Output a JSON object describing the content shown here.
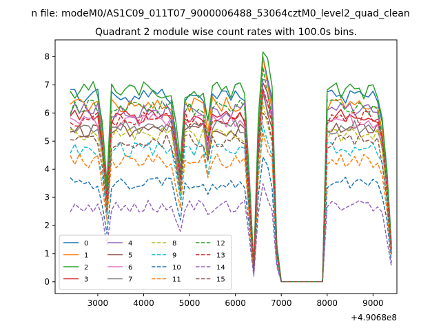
{
  "figure": {
    "suptitle": "n file: modeM0/AS1C09_011T07_9000006488_53064cztM0_level2_quad_clean",
    "title": "Quadrant 2 module wise count rates with 100.0s bins.",
    "offset_label": "+4.9068e8"
  },
  "chart_data": {
    "type": "line",
    "title": "Quadrant 2 module wise count rates with 100.0s bins.",
    "xlabel": "",
    "ylabel": "",
    "x_offset": 490680000,
    "xlim": [
      2070,
      9520
    ],
    "ylim": [
      -0.42,
      8.6
    ],
    "x_ticks": [
      3000,
      4000,
      5000,
      6000,
      7000,
      8000,
      9000
    ],
    "x_tick_labels": [
      "3000",
      "4000",
      "5000",
      "6000",
      "7000",
      "8000",
      "9000"
    ],
    "y_ticks": [
      0,
      1,
      2,
      3,
      4,
      5,
      6,
      7,
      8
    ],
    "y_tick_labels": [
      "0",
      "1",
      "2",
      "3",
      "4",
      "5",
      "6",
      "7",
      "8"
    ],
    "grid": false,
    "legend_position": "lower-left",
    "legend_columns": 4,
    "series": [
      {
        "name": "0",
        "color": "#1f77b4",
        "dash": "solid",
        "level": 6.6,
        "amp": 0.28,
        "seed": 1
      },
      {
        "name": "1",
        "color": "#ff7f0e",
        "dash": "solid",
        "level": 6.3,
        "amp": 0.28,
        "seed": 2
      },
      {
        "name": "2",
        "color": "#2ca02c",
        "dash": "solid",
        "level": 6.8,
        "amp": 0.32,
        "seed": 3
      },
      {
        "name": "3",
        "color": "#d62728",
        "dash": "solid",
        "level": 5.9,
        "amp": 0.28,
        "seed": 4
      },
      {
        "name": "4",
        "color": "#9467bd",
        "dash": "solid",
        "level": 6.1,
        "amp": 0.3,
        "seed": 5
      },
      {
        "name": "5",
        "color": "#8c564b",
        "dash": "solid",
        "level": 5.4,
        "amp": 0.25,
        "seed": 6
      },
      {
        "name": "6",
        "color": "#e377c2",
        "dash": "solid",
        "level": 5.7,
        "amp": 0.26,
        "seed": 7
      },
      {
        "name": "7",
        "color": "#7f7f7f",
        "dash": "solid",
        "level": 5.5,
        "amp": 0.25,
        "seed": 8
      },
      {
        "name": "8",
        "color": "#bcbd22",
        "dash": "dashed",
        "level": 5.2,
        "amp": 0.27,
        "seed": 9
      },
      {
        "name": "9",
        "color": "#17becf",
        "dash": "dashed",
        "level": 4.7,
        "amp": 0.26,
        "seed": 10
      },
      {
        "name": "10",
        "color": "#1f77b4",
        "dash": "dashed",
        "level": 3.5,
        "amp": 0.22,
        "seed": 11
      },
      {
        "name": "11",
        "color": "#ff7f0e",
        "dash": "dashed",
        "level": 4.3,
        "amp": 0.25,
        "seed": 12
      },
      {
        "name": "12",
        "color": "#2ca02c",
        "dash": "dashed",
        "level": 6.2,
        "amp": 0.28,
        "seed": 13
      },
      {
        "name": "13",
        "color": "#d62728",
        "dash": "dashed",
        "level": 5.8,
        "amp": 0.27,
        "seed": 14
      },
      {
        "name": "14",
        "color": "#9467bd",
        "dash": "dashed",
        "level": 2.7,
        "amp": 0.22,
        "seed": 15
      },
      {
        "name": "15",
        "color": "#8c564b",
        "dash": "dashed",
        "level": 5.0,
        "amp": 0.26,
        "seed": 16
      }
    ]
  }
}
